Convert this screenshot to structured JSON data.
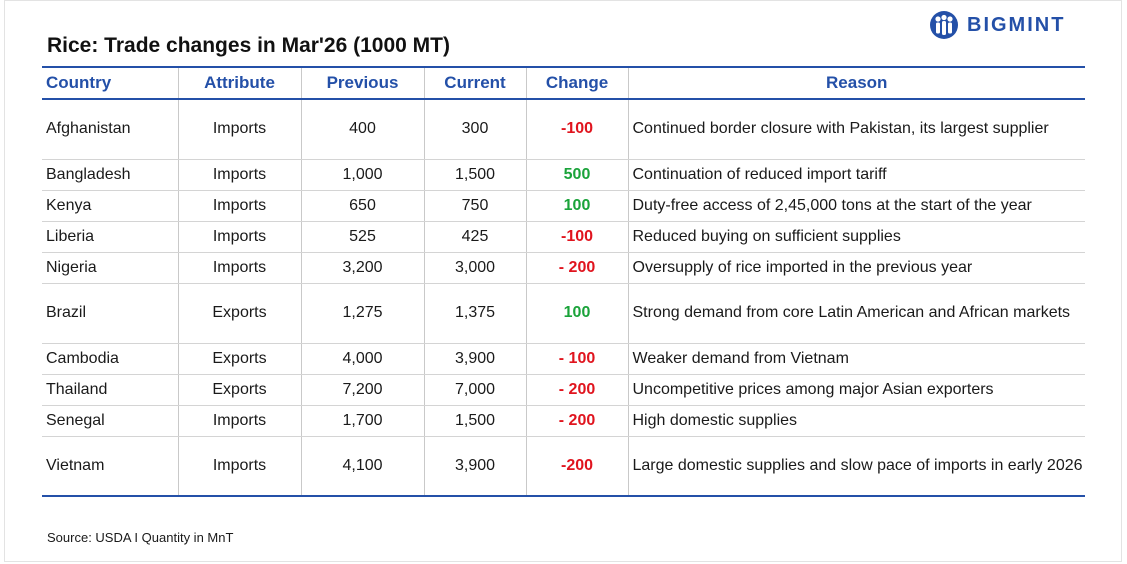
{
  "title": "Rice: Trade changes in Mar'26 (1000 MT)",
  "brand": {
    "name": "BIGMINT",
    "color": "#2450a8"
  },
  "colors": {
    "negative": "#e0141e",
    "positive": "#1aa33a",
    "header": "#2450a8"
  },
  "table": {
    "headers": [
      "Country",
      "Attribute",
      "Previous",
      "Current",
      "Change",
      "Reason"
    ],
    "rows": [
      {
        "country": "Afghanistan",
        "attribute": "Imports",
        "previous": "400",
        "current": "300",
        "change": "-100",
        "direction": "neg",
        "reason": "Continued border closure with Pakistan, its largest supplier"
      },
      {
        "country": "Bangladesh",
        "attribute": "Imports",
        "previous": "1,000",
        "current": "1,500",
        "change": "500",
        "direction": "pos",
        "reason": "Continuation of reduced import tariff"
      },
      {
        "country": "Kenya",
        "attribute": "Imports",
        "previous": "650",
        "current": "750",
        "change": "100",
        "direction": "pos",
        "reason": "Duty-free access of 2,45,000 tons at the start of the year"
      },
      {
        "country": "Liberia",
        "attribute": "Imports",
        "previous": "525",
        "current": "425",
        "change": "-100",
        "direction": "neg",
        "reason": "Reduced buying on sufficient supplies"
      },
      {
        "country": "Nigeria",
        "attribute": "Imports",
        "previous": "3,200",
        "current": "3,000",
        "change": "- 200",
        "direction": "neg",
        "reason": "Oversupply of rice imported in the previous year"
      },
      {
        "country": "Brazil",
        "attribute": "Exports",
        "previous": "1,275",
        "current": "1,375",
        "change": "100",
        "direction": "pos",
        "reason": "Strong demand from core Latin American and African markets"
      },
      {
        "country": "Cambodia",
        "attribute": "Exports",
        "previous": "4,000",
        "current": "3,900",
        "change": "- 100",
        "direction": "neg",
        "reason": "Weaker demand from Vietnam"
      },
      {
        "country": "Thailand",
        "attribute": "Exports",
        "previous": "7,200",
        "current": "7,000",
        "change": "- 200",
        "direction": "neg",
        "reason": "Uncompetitive prices among major Asian exporters"
      },
      {
        "country": "Senegal",
        "attribute": "Imports",
        "previous": "1,700",
        "current": "1,500",
        "change": "- 200",
        "direction": "neg",
        "reason": "High domestic supplies"
      },
      {
        "country": "Vietnam",
        "attribute": "Imports",
        "previous": "4,100",
        "current": "3,900",
        "change": "-200",
        "direction": "neg",
        "reason": "Large domestic supplies and slow pace of imports in early 2026"
      }
    ]
  },
  "source": "Source: USDA I Quantity in MnT"
}
